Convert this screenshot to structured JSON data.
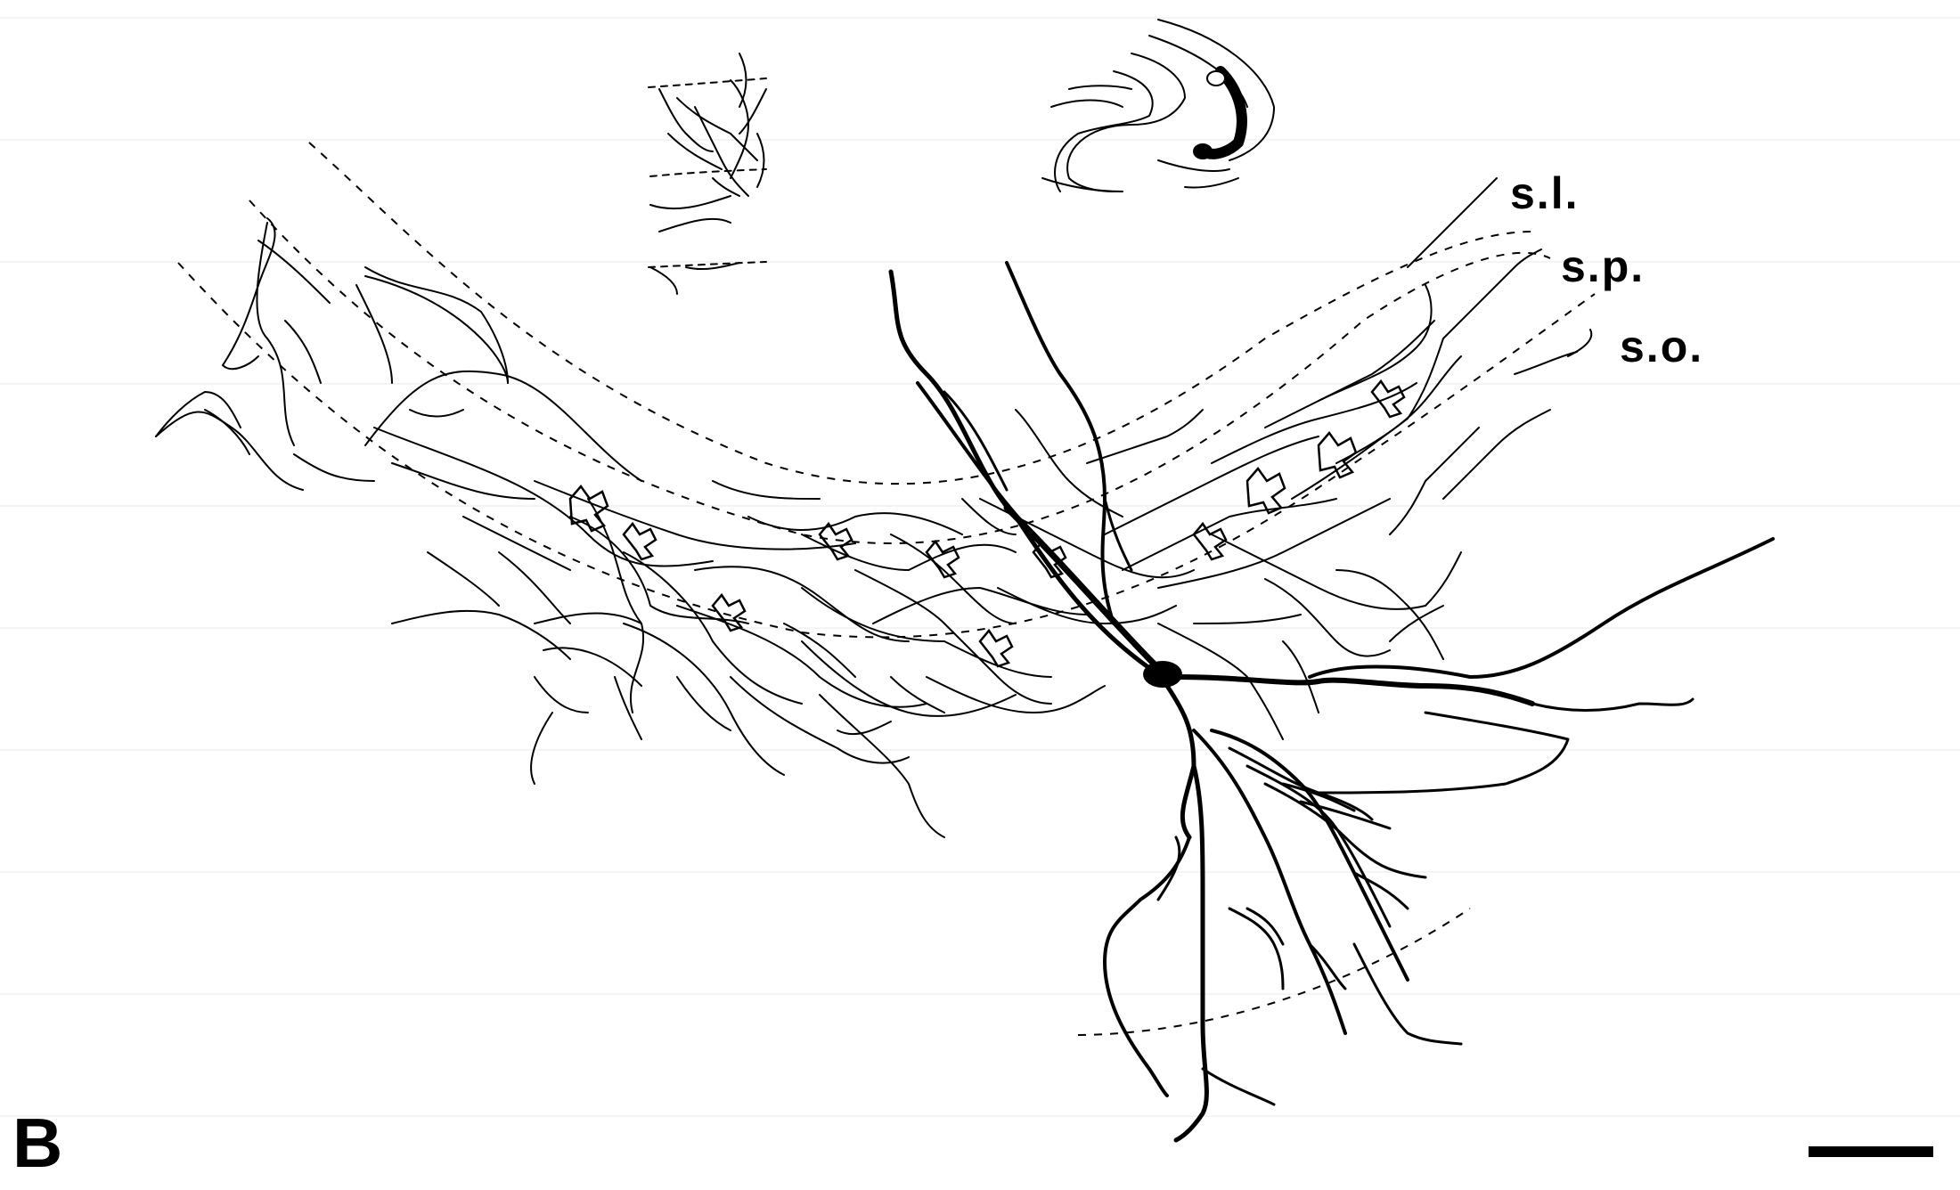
{
  "panel_letter": "B",
  "layers": {
    "sl": "s.l.",
    "sp": "s.p.",
    "so": "s.o."
  },
  "colors": {
    "ink": "#000000",
    "background": "#ffffff",
    "gridline": "#e8e8e8"
  }
}
